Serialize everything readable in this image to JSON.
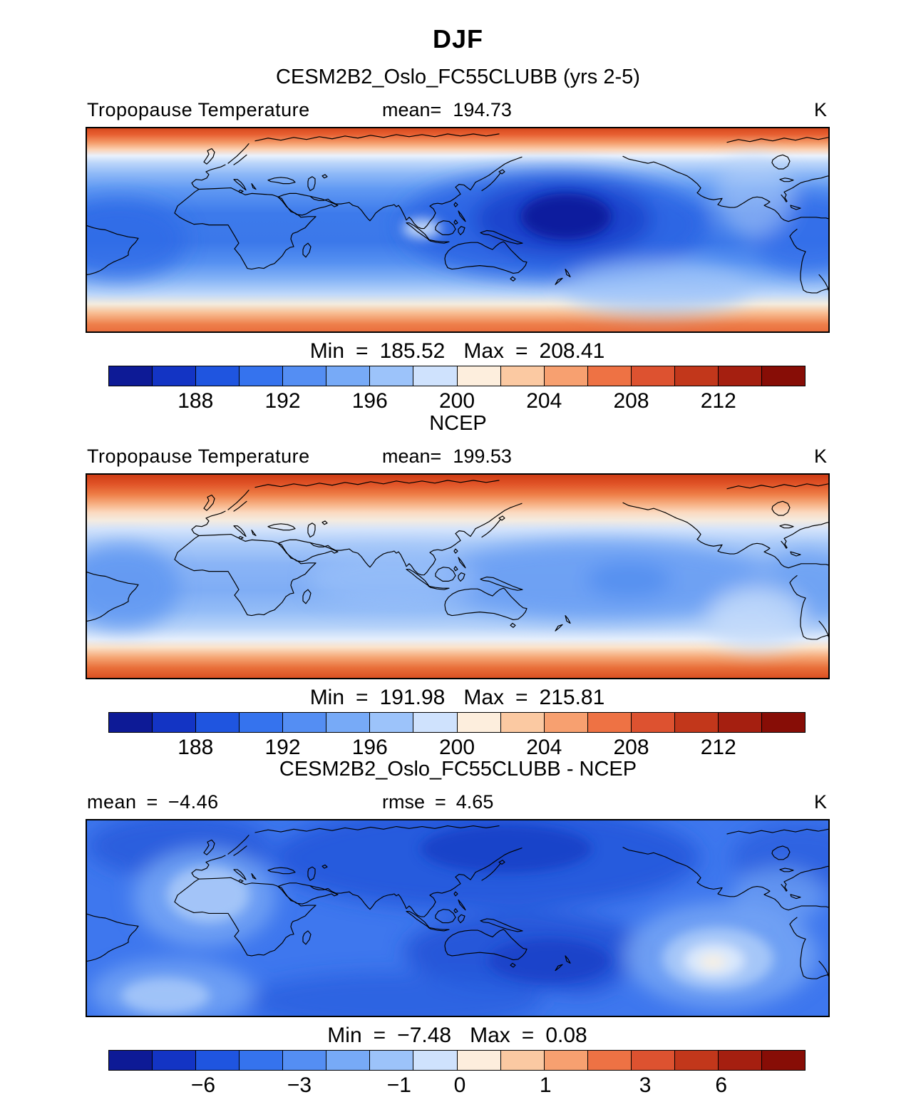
{
  "page": {
    "title": "DJF"
  },
  "shared": {
    "eq": "=",
    "min_label": "Min",
    "max_label": "Max",
    "palette": [
      "#0d1a96",
      "#1334c4",
      "#1f55e0",
      "#3573ee",
      "#548ef3",
      "#77aaf7",
      "#9cc3fa",
      "#cfe2fd",
      "#fdeedd",
      "#fbc9a2",
      "#f7a070",
      "#ee7244",
      "#dd5230",
      "#c2371b",
      "#a51f10",
      "#870d06"
    ]
  },
  "panels": [
    {
      "subtitle": "CESM2B2_Oslo_FC55CLUBB (yrs 2-5)",
      "field_label": "Tropopause Temperature",
      "mean_label": "mean=",
      "mean_value": "194.73",
      "unit": "K",
      "min_value": "185.52",
      "max_value": "208.41",
      "colorbar": {
        "ticks": [
          {
            "label": "188",
            "f": 0.125
          },
          {
            "label": "192",
            "f": 0.25
          },
          {
            "label": "196",
            "f": 0.375
          },
          {
            "label": "200",
            "f": 0.5
          },
          {
            "label": "204",
            "f": 0.625
          },
          {
            "label": "208",
            "f": 0.75
          },
          {
            "label": "212",
            "f": 0.875
          }
        ]
      }
    },
    {
      "subtitle": "NCEP",
      "field_label": "Tropopause Temperature",
      "mean_label": "mean=",
      "mean_value": "199.53",
      "unit": "K",
      "min_value": "191.98",
      "max_value": "215.81",
      "colorbar": {
        "ticks": [
          {
            "label": "188",
            "f": 0.125
          },
          {
            "label": "192",
            "f": 0.25
          },
          {
            "label": "196",
            "f": 0.375
          },
          {
            "label": "200",
            "f": 0.5
          },
          {
            "label": "204",
            "f": 0.625
          },
          {
            "label": "208",
            "f": 0.75
          },
          {
            "label": "212",
            "f": 0.875
          }
        ]
      }
    },
    {
      "subtitle": "CESM2B2_Oslo_FC55CLUBB - NCEP",
      "mean_label": "mean",
      "mean_value": "−4.46",
      "rmse_label": "rmse",
      "rmse_value": "4.65",
      "unit": "K",
      "min_value": "−7.48",
      "max_value": "0.08",
      "colorbar": {
        "ticks": [
          {
            "label": "−6",
            "f": 0.136
          },
          {
            "label": "−3",
            "f": 0.274
          },
          {
            "label": "−1",
            "f": 0.417
          },
          {
            "label": "0",
            "f": 0.504
          },
          {
            "label": "1",
            "f": 0.627
          },
          {
            "label": "3",
            "f": 0.77
          },
          {
            "label": "6",
            "f": 0.879
          }
        ]
      }
    }
  ],
  "chart_data": [
    {
      "type": "heatmap",
      "panel": "top",
      "season": "DJF",
      "source": "CESM2B2_Oslo_FC55CLUBB (yrs 2-5)",
      "variable": "Tropopause Temperature",
      "units": "K",
      "mean": 194.73,
      "min": 185.52,
      "max": 208.41,
      "colorbar_range": [
        184,
        216
      ],
      "colorbar_interval": 2,
      "colorbar_ticks": [
        188,
        192,
        196,
        200,
        204,
        208,
        212
      ],
      "projection": "global cylindrical equidistant (90N-90S) with coastlines",
      "pattern": "cold blue tropical belt near 186-196 K with the darkest minimum over the western tropical Pacific; warm orange-red belts of 202-214 K poleward of about 40 degrees in both hemispheres"
    },
    {
      "type": "heatmap",
      "panel": "middle",
      "season": "DJF",
      "source": "NCEP",
      "variable": "Tropopause Temperature",
      "units": "K",
      "mean": 199.53,
      "min": 191.98,
      "max": 215.81,
      "colorbar_range": [
        184,
        216
      ],
      "colorbar_interval": 2,
      "colorbar_ticks": [
        188,
        192,
        196,
        200,
        204,
        208,
        212
      ],
      "projection": "global cylindrical equidistant (90N-90S) with coastlines",
      "pattern": "same spatial structure but warmer overall: tropical belt mostly light blue 192-198 K, with stronger and broader orange-red extratropical belts"
    },
    {
      "type": "heatmap",
      "panel": "bottom",
      "season": "DJF",
      "source": "CESM2B2_Oslo_FC55CLUBB - NCEP",
      "variable": "Tropopause Temperature difference (model minus NCEP)",
      "units": "K",
      "mean": -4.46,
      "rmse": 4.65,
      "min": -7.48,
      "max": 0.08,
      "colorbar_ticks": [
        -6,
        -3,
        -1,
        0,
        1,
        3,
        6
      ],
      "projection": "global cylindrical equidistant (90N-90S) with coastlines",
      "pattern": "negative (blue) difference nearly everywhere; darkest blues (-5 to -7.5 K) over northern Asia and south of the equator in the Indian/Pacific sector; lighter patches over the Atlantic and southeast Pacific with a small near-zero whitish spot in the southeast tropical Pacific"
    }
  ]
}
